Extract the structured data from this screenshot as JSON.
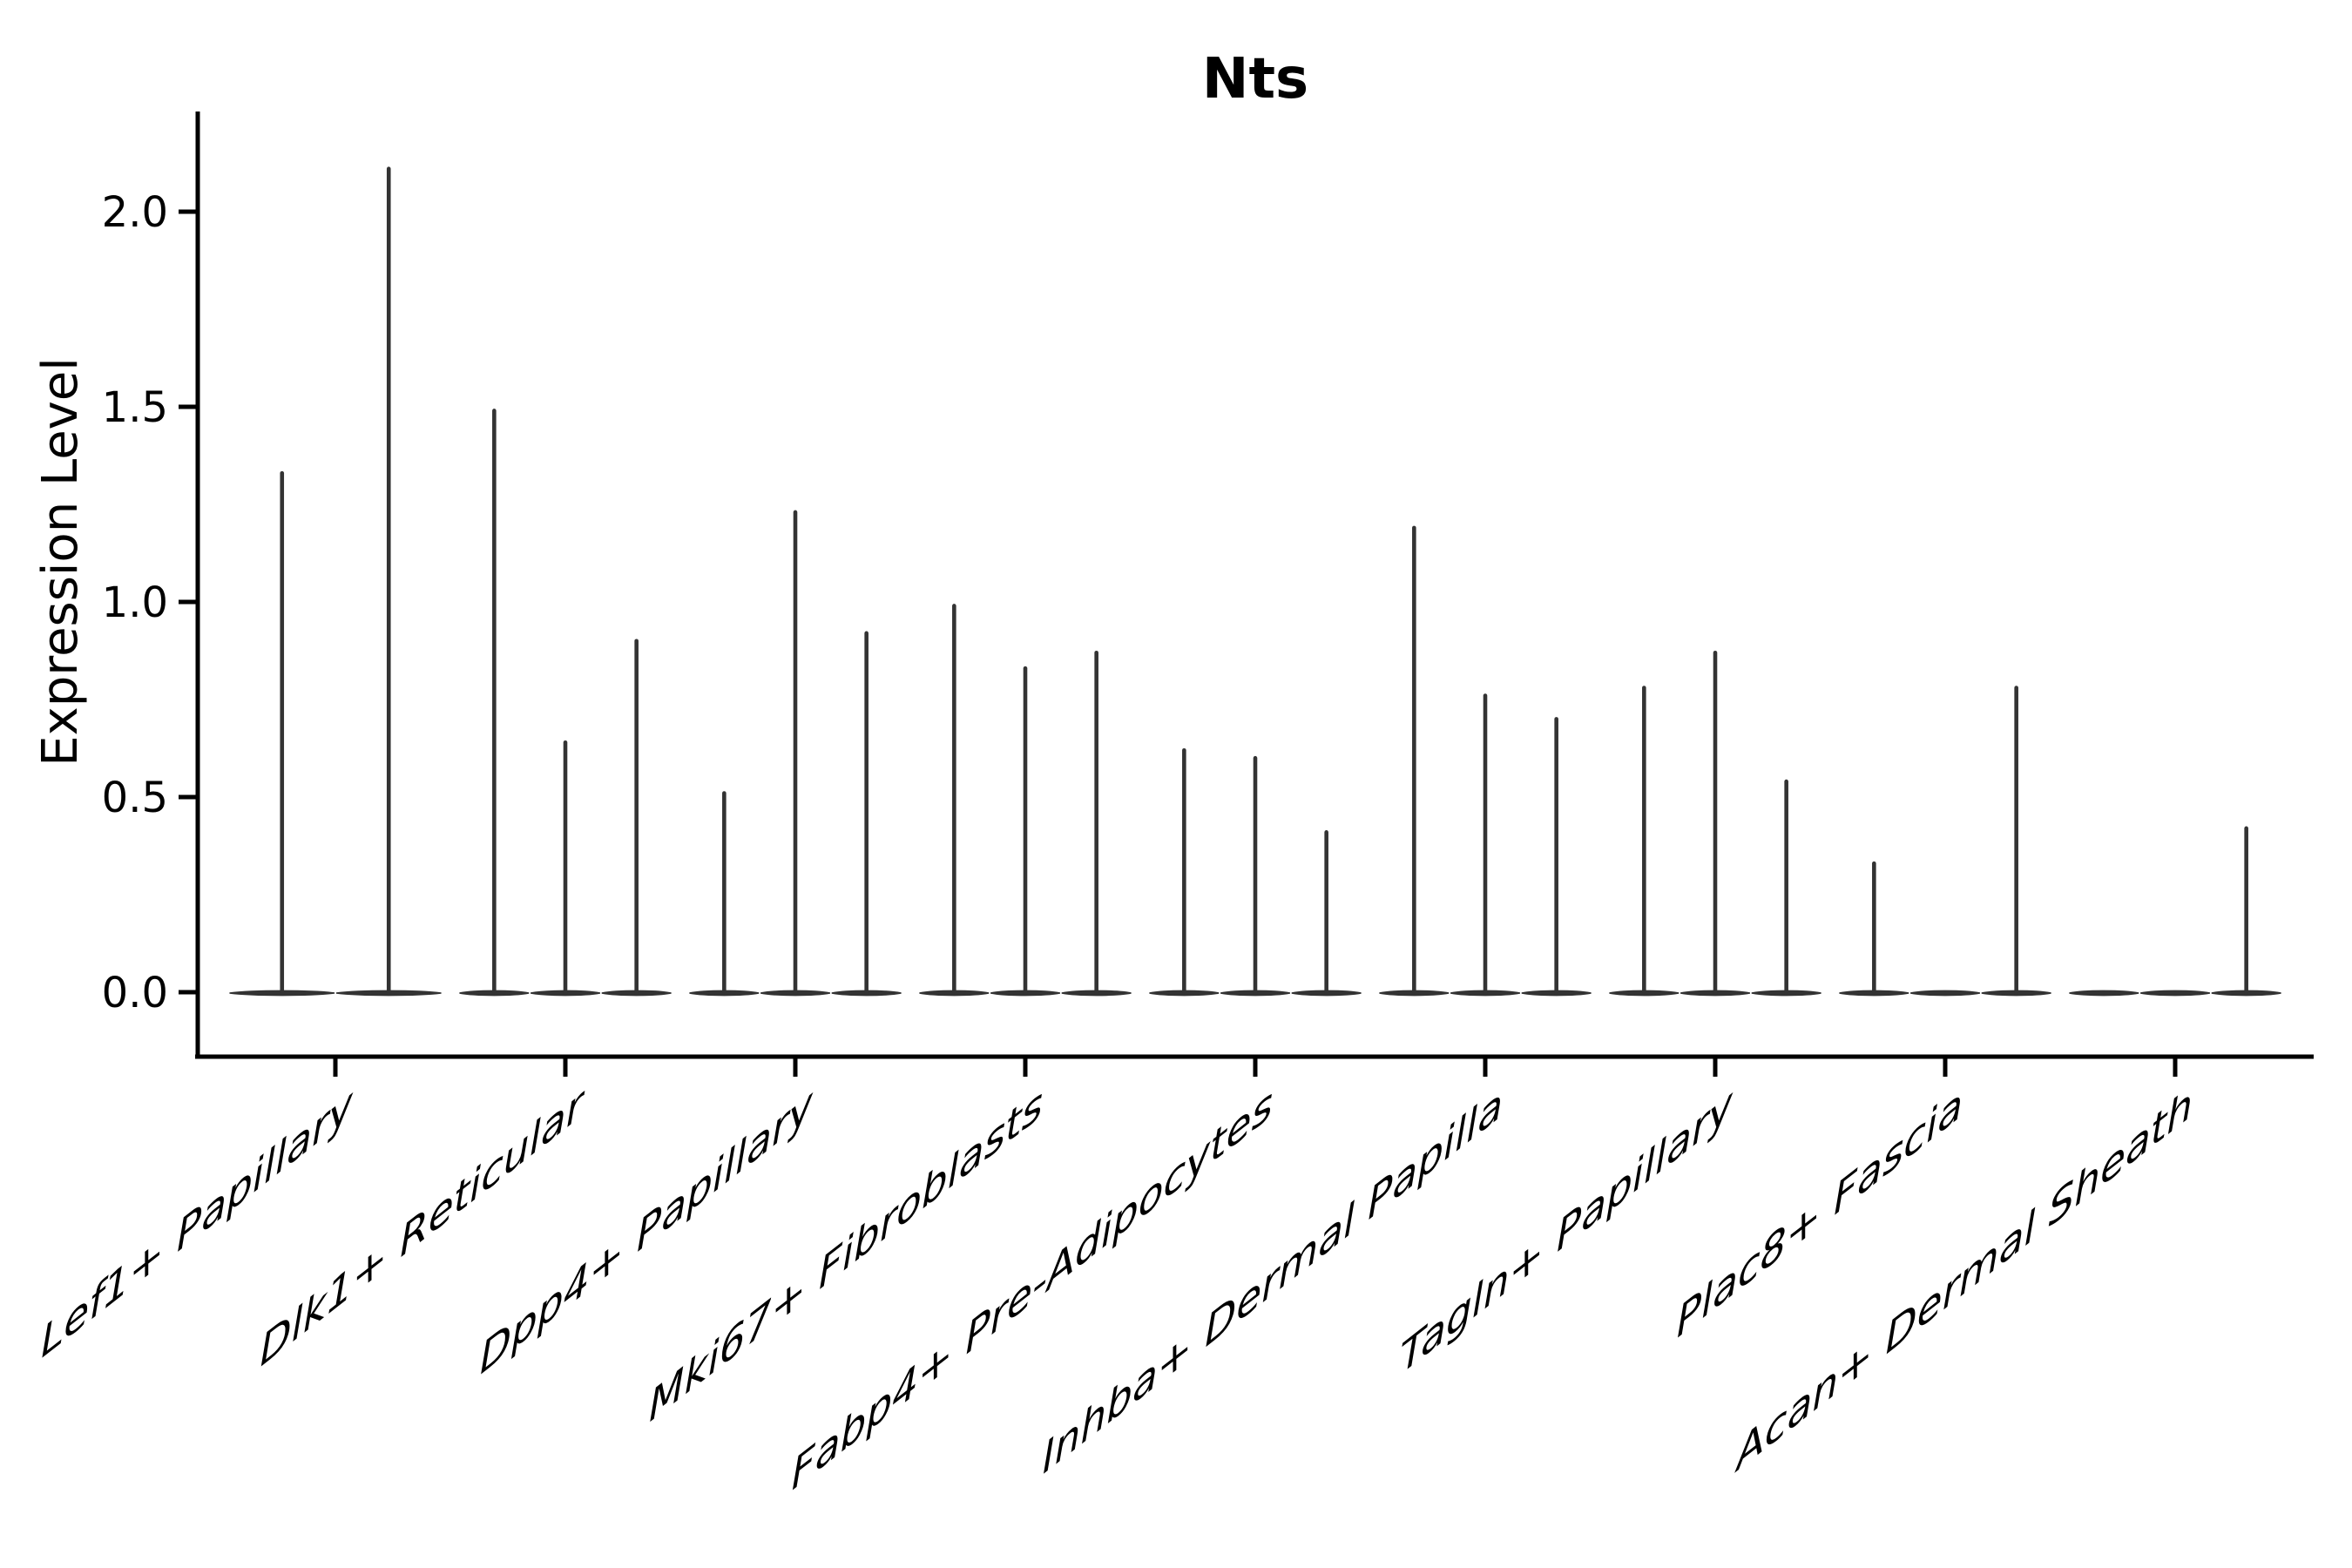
{
  "chart_data": {
    "type": "violin",
    "title": "Nts",
    "ylabel": "Expression Level",
    "xlabel": "",
    "y_ticks": [
      "0.0",
      "0.5",
      "1.0",
      "1.5",
      "2.0"
    ],
    "y_tick_values": [
      0.0,
      0.5,
      1.0,
      1.5,
      2.0
    ],
    "ylim": [
      -0.17,
      2.26
    ],
    "grid": false,
    "legend": "none",
    "x_tick_label_angle_deg": 38,
    "groups": [
      {
        "label": "Lef1+ Papillary",
        "violin_max_values": [
          1.33,
          2.11
        ]
      },
      {
        "label": "Dlk1+ Reticular",
        "violin_max_values": [
          1.49,
          0.64,
          0.9
        ]
      },
      {
        "label": "Dpp4+ Papillary",
        "violin_max_values": [
          0.51,
          1.23,
          0.92
        ]
      },
      {
        "label": "Mki67+ Fibroblasts",
        "violin_max_values": [
          0.99,
          0.83,
          0.87
        ]
      },
      {
        "label": "Fabp4+ Pre-Adipocytes",
        "violin_max_values": [
          0.62,
          0.6,
          0.41
        ]
      },
      {
        "label": "Inhba+ Dermal Papilla",
        "violin_max_values": [
          1.19,
          0.76,
          0.7
        ]
      },
      {
        "label": "Tagln+ Papillary",
        "violin_max_values": [
          0.78,
          0.87,
          0.54
        ]
      },
      {
        "label": "Plac8+ Fascia",
        "violin_max_values": [
          0.33,
          0.0,
          0.78
        ]
      },
      {
        "label": "Acan+ Dermal Sheath",
        "violin_max_values": [
          0.0,
          0.0,
          0.42
        ]
      }
    ],
    "colors": {
      "violin": "#333333",
      "axis": "#000000",
      "text": "#000000",
      "background": "#ffffff"
    }
  }
}
